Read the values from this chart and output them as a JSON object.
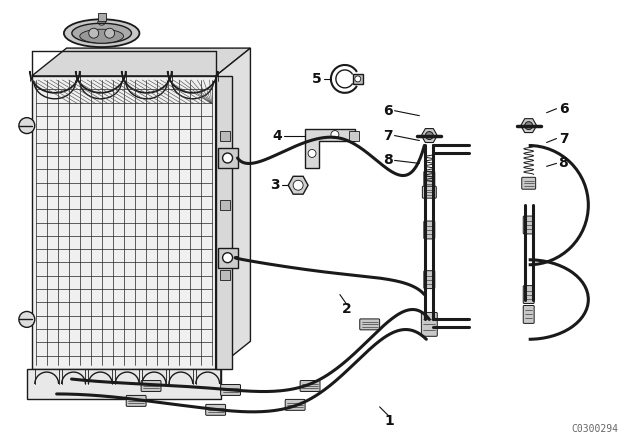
{
  "bg_color": "#ffffff",
  "line_color": "#1a1a1a",
  "fig_width": 6.4,
  "fig_height": 4.48,
  "dpi": 100,
  "watermark": "C0300294",
  "lw_main": 1.0,
  "lw_thick": 1.8,
  "lw_thin": 0.6,
  "lw_pipe": 2.2
}
